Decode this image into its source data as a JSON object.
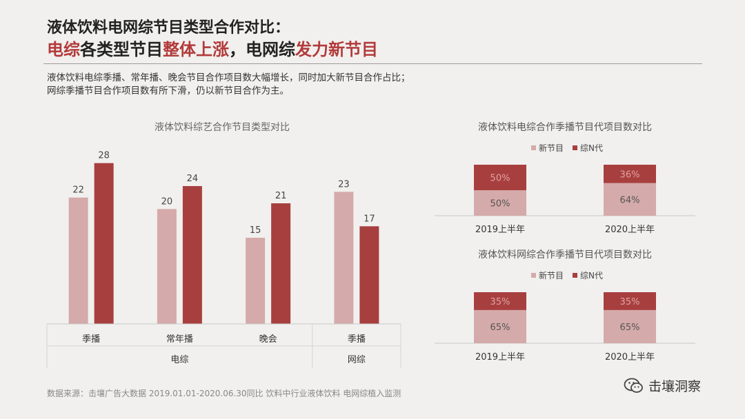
{
  "header": {
    "line1": "液体饮料电网综节目类型合作对比：",
    "line2": [
      "电综",
      "各类型节目",
      "整体上涨",
      "，电网综",
      "发力新节目"
    ]
  },
  "subtitle": {
    "line1": "液体饮料电综季播、常年播、晚会节目合作项目数大幅增长，同时加大新节目合作占比；",
    "line2": "网综季播节目合作项目数有所下滑，仍以新节目合作为主。"
  },
  "footer": {
    "source": "数据来源：击壤广告大数据 2019.01.01-2020.06.30同比 饮料中行业液体饮料 电网综植入监测",
    "brand": "击壤洞察"
  },
  "colors": {
    "light": "#d5aaaa",
    "dark": "#a83f3f",
    "highlight": "#b23a3a"
  },
  "chart_data": [
    {
      "type": "bar",
      "title": "液体饮料综艺合作节目类型对比",
      "categories": [
        "季播",
        "常年播",
        "晚会",
        "季播"
      ],
      "groups": [
        {
          "label": "电综",
          "span": 3
        },
        {
          "label": "网综",
          "span": 1
        }
      ],
      "series": [
        {
          "values": [
            22,
            20,
            15,
            23
          ],
          "color": "#d5aaaa"
        },
        {
          "values": [
            28,
            24,
            21,
            17
          ],
          "color": "#a83f3f"
        }
      ],
      "ylim": [
        0,
        30
      ]
    },
    {
      "type": "bar",
      "stacked": true,
      "title": "液体饮料电综合作季播节目代项目数对比",
      "categories": [
        "2019上半年",
        "2020上半年"
      ],
      "series": [
        {
          "name": "新节目",
          "values": [
            50,
            64
          ],
          "labels": [
            "50%",
            "64%"
          ],
          "color": "#d5aaaa"
        },
        {
          "name": "综N代",
          "values": [
            50,
            36
          ],
          "labels": [
            "50%",
            "36%"
          ],
          "color": "#a83f3f"
        }
      ],
      "ylim": [
        0,
        100
      ]
    },
    {
      "type": "bar",
      "stacked": true,
      "title": "液体饮料网综合作季播节目代项目数对比",
      "categories": [
        "2019上半年",
        "2020上半年"
      ],
      "series": [
        {
          "name": "新节目",
          "values": [
            65,
            65
          ],
          "labels": [
            "65%",
            "65%"
          ],
          "color": "#d5aaaa"
        },
        {
          "name": "综N代",
          "values": [
            35,
            35
          ],
          "labels": [
            "35%",
            "35%"
          ],
          "color": "#a83f3f"
        }
      ],
      "ylim": [
        0,
        100
      ]
    }
  ]
}
